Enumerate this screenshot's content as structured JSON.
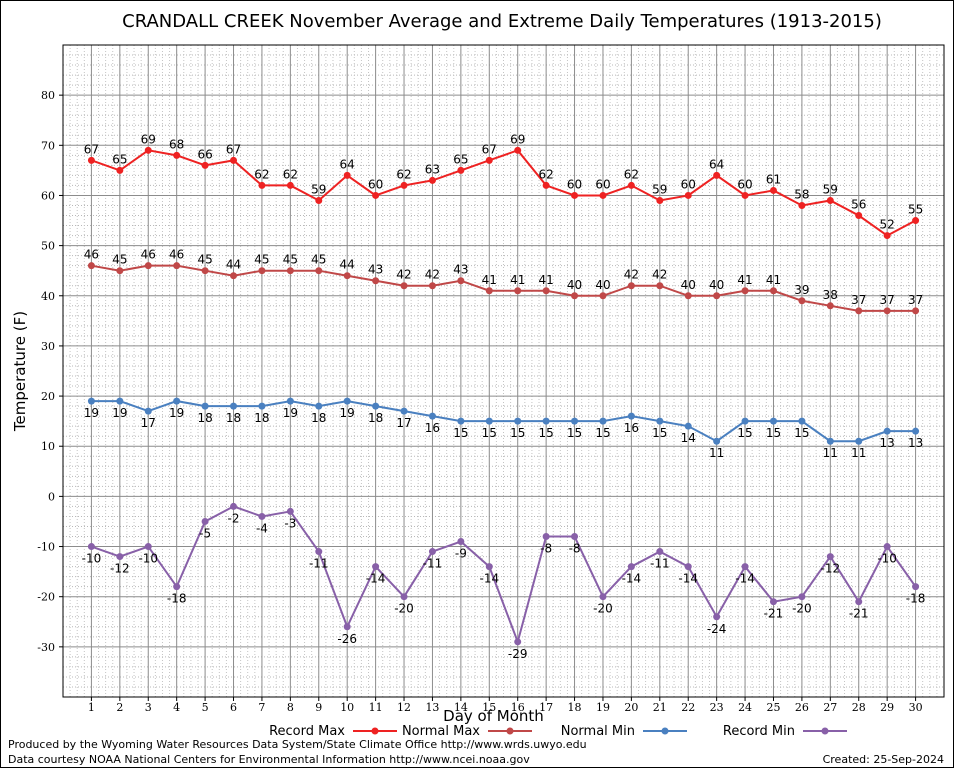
{
  "chart_data": {
    "type": "line",
    "title": "CRANDALL CREEK November Average and Extreme Daily Temperatures (1913-2015)",
    "xlabel": "Day of Month",
    "ylabel": "Temperature (F)",
    "ylim": [
      -40,
      90
    ],
    "yticks": [
      -30,
      -20,
      -10,
      0,
      10,
      20,
      30,
      40,
      50,
      60,
      70,
      80
    ],
    "grid": true,
    "legend_position": "bottom",
    "x": [
      1,
      2,
      3,
      4,
      5,
      6,
      7,
      8,
      9,
      10,
      11,
      12,
      13,
      14,
      15,
      16,
      17,
      18,
      19,
      20,
      21,
      22,
      23,
      24,
      25,
      26,
      27,
      28,
      29,
      30
    ],
    "series": [
      {
        "name": "Record Max",
        "color": "#ee2222",
        "values": [
          67,
          65,
          69,
          68,
          66,
          67,
          62,
          62,
          59,
          64,
          60,
          62,
          63,
          65,
          67,
          69,
          62,
          60,
          60,
          62,
          59,
          60,
          64,
          60,
          61,
          58,
          59,
          56,
          52,
          55
        ]
      },
      {
        "name": "Normal Max",
        "color": "#c04848",
        "values": [
          46,
          45,
          46,
          46,
          45,
          44,
          45,
          45,
          45,
          44,
          43,
          42,
          42,
          43,
          41,
          41,
          41,
          40,
          40,
          42,
          42,
          40,
          40,
          41,
          41,
          39,
          38,
          37,
          37,
          37
        ]
      },
      {
        "name": "Normal Min",
        "color": "#4a80c0",
        "values": [
          19,
          19,
          17,
          19,
          18,
          18,
          18,
          19,
          18,
          19,
          18,
          17,
          16,
          15,
          15,
          15,
          15,
          15,
          15,
          16,
          15,
          14,
          11,
          15,
          15,
          15,
          11,
          11,
          13,
          13
        ]
      },
      {
        "name": "Record Min",
        "color": "#8860a8",
        "values": [
          -10,
          -12,
          -10,
          -18,
          -5,
          -2,
          -4,
          -3,
          -11,
          -26,
          -14,
          -20,
          -11,
          -9,
          -14,
          -29,
          -8,
          -8,
          -20,
          -14,
          -11,
          -14,
          -24,
          -14,
          -21,
          -20,
          -12,
          -21,
          -10,
          -18
        ]
      }
    ]
  },
  "footer": {
    "produced_by": "Produced by the Wyoming Water Resources Data System/State Climate Office http://www.wrds.uwyo.edu",
    "courtesy": "Data courtesy NOAA National Centers for Environmental Information http://www.ncei.noaa.gov",
    "created": "Created:  25-Sep-2024"
  }
}
